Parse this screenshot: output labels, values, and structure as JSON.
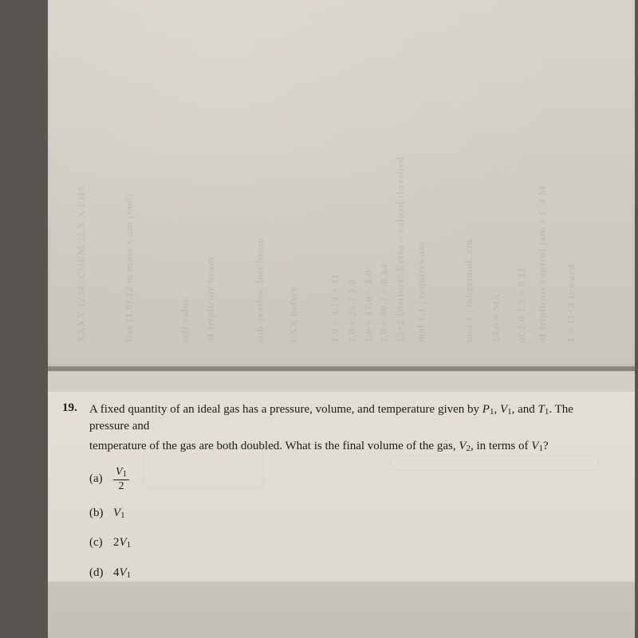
{
  "colors": {
    "page_bg": "#d3cfc7",
    "question_bg": "#e3dfd6",
    "text": "#1a1a1a",
    "frame": "#5a5550"
  },
  "typography": {
    "body_fontsize_pt": 11,
    "number_weight": "700",
    "family": "serif"
  },
  "bleed_lines": [
    "XXXX 1234: CHEM 2LX X EHS",
    "Use (1.0) 12 m mass x am (mol)",
    "self value",
    "of triplicate beam",
    "sub yeatles: lost beam",
    "LXX before",
    "1.0 = 4.14 × 11",
    "1.0 = 25.1 1.0",
    "1.0 = 47.0 = 1.0",
    "1.0 = 60.1 = 0.34",
    "15+2 Distinct: Extra – valued threshed",
    "mol 1.1 | requires am",
    "mol 1 | lubgrimol. xm",
    "14.0 × MX",
    "of 1.0 1.3 × 8 11",
    "of triplicate control jam × C 4 M",
    "1 = 11+2 Inward"
  ],
  "question": {
    "number": "19.",
    "text_line1": "A fixed quantity of an ideal gas has a pressure, volume, and temperature given by ",
    "vars1": [
      "P",
      "1",
      ", ",
      "V",
      "1",
      ", and ",
      "T",
      "1"
    ],
    "text_line1_end": ". The pressure and",
    "text_line2_a": "temperature of the gas are both doubled. What is the final volume of the gas, ",
    "vars2": [
      "V",
      "2"
    ],
    "text_line2_b": ", in terms of ",
    "vars3": [
      "V",
      "1"
    ],
    "text_line2_end": "?",
    "choices": [
      {
        "label": "(a)",
        "type": "fraction",
        "num_var": "V",
        "num_sub": "1",
        "den": "2"
      },
      {
        "label": "(b)",
        "type": "var",
        "var": "V",
        "sub": "1"
      },
      {
        "label": "(c)",
        "type": "coeffvar",
        "coeff": "2",
        "var": "V",
        "sub": "1"
      },
      {
        "label": "(d)",
        "type": "coeffvar",
        "coeff": "4",
        "var": "V",
        "sub": "1"
      }
    ]
  }
}
